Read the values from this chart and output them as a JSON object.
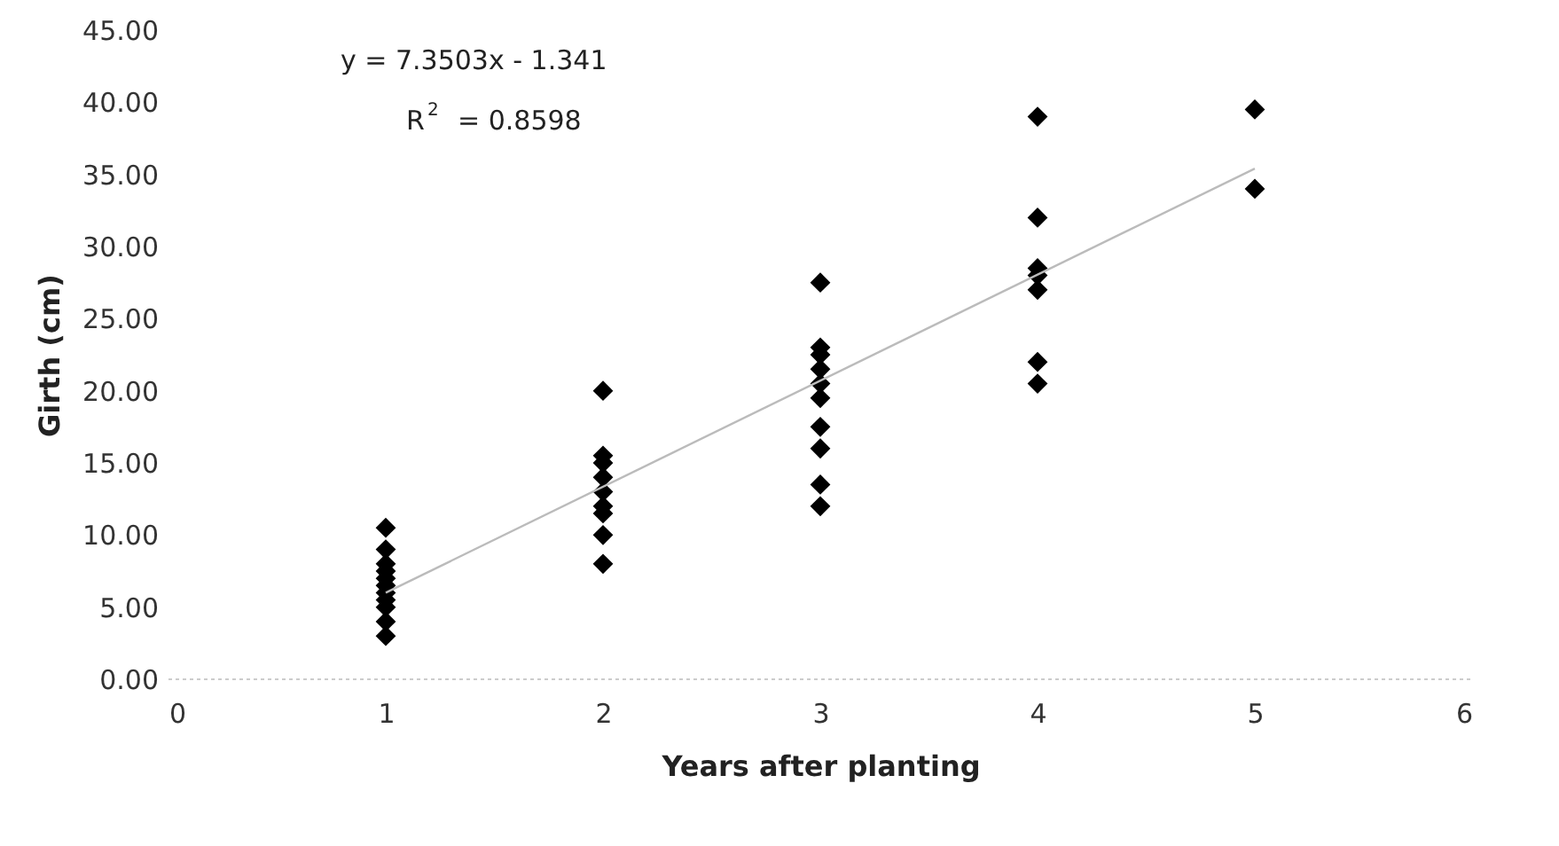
{
  "chart_data": {
    "type": "scatter",
    "xlabel": "Years after planting",
    "ylabel": "Girth (cm)",
    "xlim": [
      0,
      6
    ],
    "xticks": [
      0,
      1,
      2,
      3,
      4,
      5,
      6
    ],
    "ylim": [
      0,
      45
    ],
    "yticks": [
      {
        "value": 0,
        "label": "0.00"
      },
      {
        "value": 5,
        "label": "5.00"
      },
      {
        "value": 10,
        "label": "10.00"
      },
      {
        "value": 15,
        "label": "15.00"
      },
      {
        "value": 20,
        "label": "20.00"
      },
      {
        "value": 25,
        "label": "25.00"
      },
      {
        "value": 30,
        "label": "30.00"
      },
      {
        "value": 35,
        "label": "35.00"
      },
      {
        "value": 40,
        "label": "40.00"
      },
      {
        "value": 45,
        "label": "45.00"
      }
    ],
    "grid": false,
    "marker": "diamond",
    "series": [
      {
        "color": "#000000",
        "x": [
          1,
          1,
          1,
          1,
          1,
          1,
          1,
          1,
          1,
          1,
          1,
          2,
          2,
          2,
          2,
          2,
          2,
          2,
          2,
          2,
          3,
          3,
          3,
          3,
          3,
          3,
          3,
          3,
          3,
          3,
          4,
          4,
          4,
          4,
          4,
          4,
          4,
          5,
          5
        ],
        "values": [
          3,
          4,
          5,
          5.5,
          6,
          6.5,
          7,
          7.5,
          8,
          9,
          10.5,
          8,
          10,
          11.5,
          12,
          13,
          14,
          15,
          15.5,
          20,
          12,
          13.5,
          16,
          17.5,
          19.5,
          20.5,
          21.5,
          22.5,
          23,
          27.5,
          20.5,
          22,
          27,
          28,
          28.5,
          32,
          39,
          34,
          39.5
        ]
      },
      {
        "type": "line",
        "marker": "none",
        "color": "#bbbbbb",
        "x": [
          1,
          5
        ],
        "values": [
          6.0,
          35.4
        ]
      }
    ],
    "annotations": [
      {
        "text": "y = 7.3503x - 1.341"
      },
      {
        "text": "R$^{2}$ = 0.8598"
      }
    ]
  }
}
